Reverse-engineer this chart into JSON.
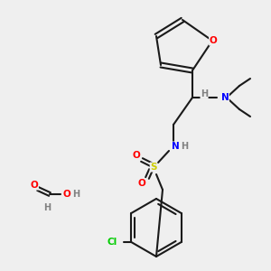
{
  "bg_color": "#efefef",
  "bond_color": "#1a1a1a",
  "bond_width": 1.5,
  "atom_colors": {
    "O": "#ff0000",
    "N": "#0000ff",
    "S": "#cccc00",
    "Cl": "#00cc00",
    "H": "#808080",
    "C": "#1a1a1a"
  },
  "font_size": 7.5
}
